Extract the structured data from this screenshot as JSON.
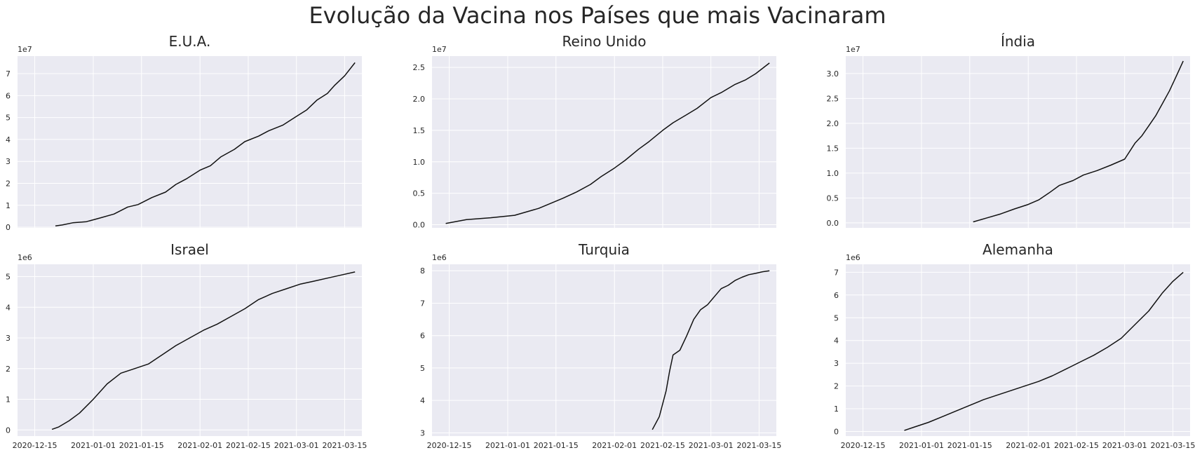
{
  "figure": {
    "suptitle": "Evolução da Vacina nos Países que mais Vacinaram",
    "background": "#ffffff",
    "axes_face": "#eaeaf2",
    "grid_color": "#ffffff",
    "line_color": "#111111"
  },
  "chart_data": [
    {
      "type": "line",
      "title": "E.U.A.",
      "multiplier": "1e7",
      "xlim": [
        "2020-12-10",
        "2021-03-20"
      ],
      "ylim": [
        -300000,
        78000000
      ],
      "xticks": [],
      "yticks": [
        0,
        10000000,
        20000000,
        30000000,
        40000000,
        50000000,
        60000000,
        70000000
      ],
      "ytick_labels": [
        "0",
        "1",
        "2",
        "3",
        "4",
        "5",
        "6",
        "7"
      ],
      "grid": true,
      "series": [
        {
          "x": [
            "2020-12-21",
            "2020-12-23",
            "2020-12-26",
            "2020-12-30",
            "2021-01-03",
            "2021-01-07",
            "2021-01-11",
            "2021-01-14",
            "2021-01-18",
            "2021-01-22",
            "2021-01-25",
            "2021-01-28",
            "2021-02-01",
            "2021-02-04",
            "2021-02-07",
            "2021-02-11",
            "2021-02-14",
            "2021-02-18",
            "2021-02-21",
            "2021-02-25",
            "2021-03-01",
            "2021-03-04",
            "2021-03-07",
            "2021-03-10",
            "2021-03-12",
            "2021-03-15",
            "2021-03-18"
          ],
          "y": [
            600000,
            1000000,
            2000000,
            2500000,
            4200000,
            6000000,
            9200000,
            10300000,
            13500000,
            16000000,
            19500000,
            22000000,
            26000000,
            28000000,
            32000000,
            35500000,
            39000000,
            41500000,
            44000000,
            46500000,
            50500000,
            53500000,
            58000000,
            61000000,
            64500000,
            69000000,
            75000000
          ]
        }
      ]
    },
    {
      "type": "line",
      "title": "Reino Unido",
      "multiplier": "1e7",
      "xlim": [
        "2020-12-10",
        "2021-03-20"
      ],
      "ylim": [
        -500000,
        26800000
      ],
      "xticks": [],
      "yticks": [
        0,
        5000000,
        10000000,
        15000000,
        20000000,
        25000000
      ],
      "ytick_labels": [
        "0.0",
        "0.5",
        "1.0",
        "1.5",
        "2.0",
        "2.5"
      ],
      "grid": true,
      "series": [
        {
          "x": [
            "2020-12-14",
            "2020-12-20",
            "2020-12-27",
            "2021-01-03",
            "2021-01-10",
            "2021-01-17",
            "2021-01-21",
            "2021-01-25",
            "2021-01-28",
            "2021-02-01",
            "2021-02-04",
            "2021-02-08",
            "2021-02-11",
            "2021-02-15",
            "2021-02-18",
            "2021-02-22",
            "2021-02-25",
            "2021-03-01",
            "2021-03-04",
            "2021-03-08",
            "2021-03-11",
            "2021-03-14",
            "2021-03-18"
          ],
          "y": [
            200000,
            800000,
            1100000,
            1500000,
            2600000,
            4200000,
            5200000,
            6400000,
            7600000,
            9000000,
            10200000,
            12000000,
            13200000,
            15000000,
            16200000,
            17500000,
            18500000,
            20200000,
            21000000,
            22300000,
            23000000,
            24000000,
            25700000
          ]
        }
      ]
    },
    {
      "type": "line",
      "title": "Índia",
      "multiplier": "1e7",
      "xlim": [
        "2020-12-10",
        "2021-03-20"
      ],
      "ylim": [
        -1000000,
        33500000
      ],
      "xticks": [],
      "yticks": [
        0,
        5000000,
        10000000,
        15000000,
        20000000,
        25000000,
        30000000
      ],
      "ytick_labels": [
        "0.0",
        "0.5",
        "1.0",
        "1.5",
        "2.0",
        "2.5",
        "3.0"
      ],
      "grid": true,
      "series": [
        {
          "x": [
            "2021-01-16",
            "2021-01-20",
            "2021-01-24",
            "2021-01-28",
            "2021-02-01",
            "2021-02-04",
            "2021-02-07",
            "2021-02-10",
            "2021-02-14",
            "2021-02-17",
            "2021-02-21",
            "2021-02-25",
            "2021-03-01",
            "2021-03-04",
            "2021-03-06",
            "2021-03-08",
            "2021-03-10",
            "2021-03-12",
            "2021-03-14",
            "2021-03-16",
            "2021-03-18"
          ],
          "y": [
            200000,
            1000000,
            1800000,
            2800000,
            3700000,
            4600000,
            6000000,
            7500000,
            8500000,
            9600000,
            10500000,
            11600000,
            12800000,
            16000000,
            17500000,
            19500000,
            21500000,
            24000000,
            26500000,
            29500000,
            32500000
          ]
        }
      ]
    },
    {
      "type": "line",
      "title": "Israel",
      "multiplier": "1e6",
      "xlim": [
        "2020-12-10",
        "2021-03-20"
      ],
      "ylim": [
        -200000,
        5400000
      ],
      "xticks": [
        "2020-12-15",
        "2021-01-01",
        "2021-01-15",
        "2021-02-01",
        "2021-02-15",
        "2021-03-01",
        "2021-03-15"
      ],
      "yticks": [
        0,
        1000000,
        2000000,
        3000000,
        4000000,
        5000000
      ],
      "ytick_labels": [
        "0",
        "1",
        "2",
        "3",
        "4",
        "5"
      ],
      "grid": true,
      "series": [
        {
          "x": [
            "2020-12-20",
            "2020-12-22",
            "2020-12-25",
            "2020-12-28",
            "2021-01-01",
            "2021-01-05",
            "2021-01-09",
            "2021-01-13",
            "2021-01-17",
            "2021-01-21",
            "2021-01-25",
            "2021-01-29",
            "2021-02-02",
            "2021-02-06",
            "2021-02-10",
            "2021-02-14",
            "2021-02-18",
            "2021-02-22",
            "2021-02-26",
            "2021-03-02",
            "2021-03-06",
            "2021-03-10",
            "2021-03-14",
            "2021-03-18"
          ],
          "y": [
            20000,
            100000,
            300000,
            550000,
            1000000,
            1500000,
            1850000,
            2000000,
            2150000,
            2450000,
            2750000,
            3000000,
            3250000,
            3450000,
            3700000,
            3950000,
            4250000,
            4450000,
            4600000,
            4750000,
            4850000,
            4950000,
            5050000,
            5150000
          ]
        }
      ]
    },
    {
      "type": "line",
      "title": "Turquia",
      "multiplier": "1e6",
      "xlim": [
        "2020-12-10",
        "2021-03-20"
      ],
      "ylim": [
        2900000,
        8200000
      ],
      "xticks": [
        "2020-12-15",
        "2021-01-01",
        "2021-01-15",
        "2021-02-01",
        "2021-02-15",
        "2021-03-01",
        "2021-03-15"
      ],
      "yticks": [
        3000000,
        4000000,
        5000000,
        6000000,
        7000000,
        8000000
      ],
      "ytick_labels": [
        "3",
        "4",
        "5",
        "6",
        "7",
        "8"
      ],
      "grid": true,
      "series": [
        {
          "x": [
            "2021-02-12",
            "2021-02-13",
            "2021-02-14",
            "2021-02-15",
            "2021-02-16",
            "2021-02-17",
            "2021-02-18",
            "2021-02-20",
            "2021-02-22",
            "2021-02-24",
            "2021-02-26",
            "2021-02-28",
            "2021-03-02",
            "2021-03-04",
            "2021-03-06",
            "2021-03-08",
            "2021-03-10",
            "2021-03-12",
            "2021-03-14",
            "2021-03-16",
            "2021-03-18"
          ],
          "y": [
            3100000,
            3300000,
            3500000,
            3900000,
            4300000,
            4900000,
            5400000,
            5550000,
            6000000,
            6500000,
            6800000,
            6950000,
            7200000,
            7450000,
            7550000,
            7700000,
            7800000,
            7880000,
            7920000,
            7970000,
            8000000
          ]
        }
      ]
    },
    {
      "type": "line",
      "title": "Alemanha",
      "multiplier": "1e6",
      "xlim": [
        "2020-12-10",
        "2021-03-20"
      ],
      "ylim": [
        -200000,
        7350000
      ],
      "xticks": [
        "2020-12-15",
        "2021-01-01",
        "2021-01-15",
        "2021-02-01",
        "2021-02-15",
        "2021-03-01",
        "2021-03-15"
      ],
      "yticks": [
        0,
        1000000,
        2000000,
        3000000,
        4000000,
        5000000,
        6000000,
        7000000
      ],
      "ytick_labels": [
        "0",
        "1",
        "2",
        "3",
        "4",
        "5",
        "6",
        "7"
      ],
      "grid": true,
      "series": [
        {
          "x": [
            "2020-12-27",
            "2020-12-30",
            "2021-01-03",
            "2021-01-07",
            "2021-01-11",
            "2021-01-15",
            "2021-01-19",
            "2021-01-23",
            "2021-01-27",
            "2021-01-31",
            "2021-02-04",
            "2021-02-08",
            "2021-02-12",
            "2021-02-16",
            "2021-02-20",
            "2021-02-24",
            "2021-02-28",
            "2021-03-04",
            "2021-03-08",
            "2021-03-12",
            "2021-03-15",
            "2021-03-18"
          ],
          "y": [
            50000,
            200000,
            400000,
            650000,
            900000,
            1150000,
            1400000,
            1600000,
            1800000,
            2000000,
            2200000,
            2450000,
            2750000,
            3050000,
            3350000,
            3700000,
            4100000,
            4700000,
            5300000,
            6100000,
            6600000,
            7000000
          ]
        }
      ]
    }
  ]
}
